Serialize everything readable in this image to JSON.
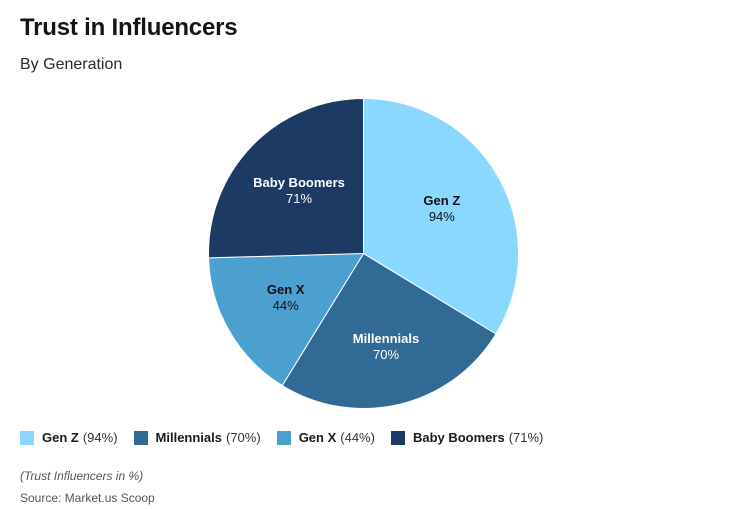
{
  "header": {
    "title": "Trust in Influencers",
    "subtitle": "By Generation"
  },
  "chart_data": {
    "type": "pie",
    "title": "Trust in Influencers",
    "subtitle": "By Generation",
    "categories": [
      "Gen Z",
      "Millennials",
      "Gen X",
      "Baby Boomers"
    ],
    "values": [
      94,
      70,
      44,
      71
    ],
    "unit": "%",
    "colors": [
      "#8AD8FF",
      "#326A96",
      "#4BA0D0",
      "#1C3A64"
    ],
    "label_text_colors": [
      "#111111",
      "#ffffff",
      "#111111",
      "#ffffff"
    ],
    "start_angle": 0,
    "direction": "clockwise",
    "legend_position": "bottom",
    "slice_labels": [
      {
        "name": "Gen Z",
        "value": "94%"
      },
      {
        "name": "Millennials",
        "value": "70%"
      },
      {
        "name": "Gen X",
        "value": "44%"
      },
      {
        "name": "Baby Boomers",
        "value": "71%"
      }
    ]
  },
  "legend": {
    "items": [
      {
        "name": "Gen Z",
        "value": "(94%)",
        "color": "#8AD8FF"
      },
      {
        "name": "Millennials",
        "value": "(70%)",
        "color": "#326A96"
      },
      {
        "name": "Gen X",
        "value": "(44%)",
        "color": "#4BA0D0"
      },
      {
        "name": "Baby Boomers",
        "value": "(71%)",
        "color": "#1C3A64"
      }
    ]
  },
  "footer": {
    "note": "(Trust Influencers in %)",
    "source": "Source: Market.us Scoop"
  }
}
